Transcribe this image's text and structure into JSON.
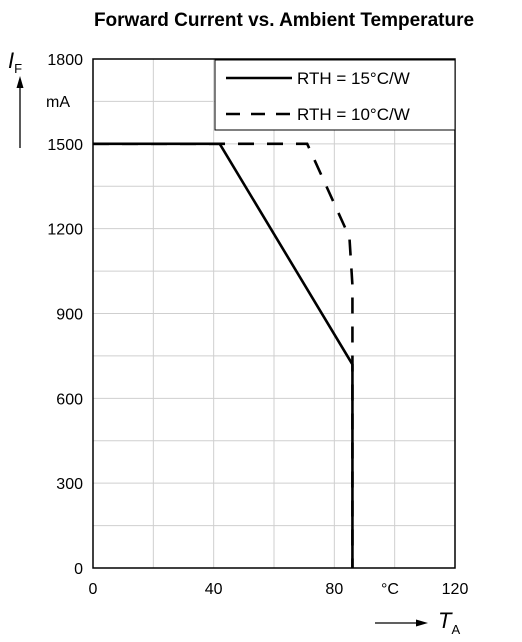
{
  "chart_data": {
    "type": "line",
    "title": "Forward Current vs. Ambient Temperature",
    "xlabel": {
      "symbol": "T",
      "subscript": "A"
    },
    "ylabel": {
      "symbol": "I",
      "subscript": "F"
    },
    "x_unit": "°C",
    "y_unit": "mA",
    "xlim": [
      0,
      120
    ],
    "ylim": [
      0,
      1800
    ],
    "x_ticks": [
      "0",
      "40",
      "80",
      "120"
    ],
    "y_ticks": [
      "0",
      "300",
      "600",
      "900",
      "1200",
      "1500",
      "1800"
    ],
    "grid": true,
    "legend_position": "top-right",
    "series": [
      {
        "name": "RTH = 15°C/W",
        "style": "solid",
        "x": [
          0,
          42,
          86,
          86
        ],
        "y": [
          1500,
          1500,
          720,
          0
        ]
      },
      {
        "name": "RTH = 10°C/W",
        "style": "dashed",
        "x": [
          0,
          71,
          85,
          86,
          86
        ],
        "y": [
          1500,
          1500,
          1170,
          1000,
          0
        ]
      }
    ]
  },
  "colors": {
    "line": "#000000",
    "grid": "#cfcfcf",
    "frame": "#000000",
    "background": "#ffffff"
  }
}
